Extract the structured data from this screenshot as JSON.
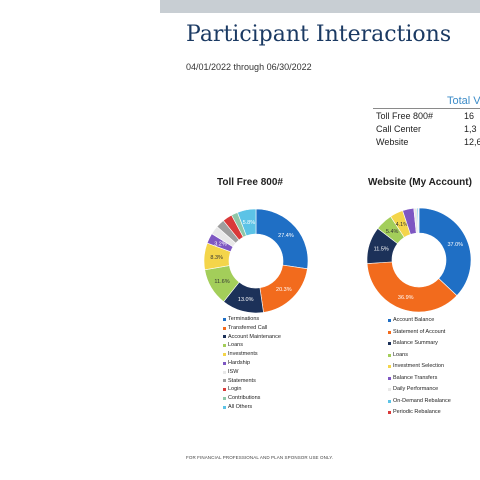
{
  "header": {
    "title": "Participant Interactions",
    "date_range": "04/01/2022 through 06/30/2022"
  },
  "total_volume": {
    "header": "Total V",
    "rows": [
      {
        "label": "Toll Free 800#",
        "value": "16"
      },
      {
        "label": "Call Center",
        "value": "1,3"
      },
      {
        "label": "Website",
        "value": "12,6"
      }
    ]
  },
  "footer": "FOR FINANCIAL PROFESSIONAL AND PLAN SPONSOR USE ONLY.",
  "chart_data": [
    {
      "type": "pie",
      "title": "Toll Free 800#",
      "labels": [
        "Terminations",
        "Transferred Call",
        "Account Maintenance",
        "Loans",
        "Investments",
        "Hardship",
        "ISW",
        "Statements",
        "Login",
        "Contributions",
        "All Others"
      ],
      "values": [
        27.4,
        20.3,
        13.0,
        11.6,
        8.3,
        3.2,
        2.7,
        2.7,
        3.0,
        2.0,
        5.8
      ],
      "data_labels": [
        "27.4%",
        "20.3%",
        "13.0%",
        "11.6%",
        "8.3%",
        "3.2%",
        "",
        "",
        "",
        "",
        "5.8%"
      ],
      "colors": [
        "#1f6fc5",
        "#f26b1d",
        "#1c3159",
        "#a3ce5a",
        "#f4d54a",
        "#7e57c2",
        "#e8e8e8",
        "#9e9e9e",
        "#d93a3a",
        "#8fc7a8",
        "#5cc3e6"
      ],
      "legend": "bottom"
    },
    {
      "type": "pie",
      "title": "Website (My Account)",
      "labels": [
        "Account Balance",
        "Statement of Account",
        "Balance Summary",
        "Loans",
        "Investment Selection",
        "Balance Transfers",
        "Daily Performance",
        "On-Demand Rebalance",
        "Periodic Rebalance"
      ],
      "values": [
        37.0,
        36.9,
        11.5,
        5.4,
        4.1,
        3.5,
        1.0,
        0.4,
        0.2
      ],
      "data_labels": [
        "37.0%",
        "36.9%",
        "11.5%",
        "5.4%",
        "4.1%",
        "",
        "",
        "",
        ""
      ],
      "colors": [
        "#1f6fc5",
        "#f26b1d",
        "#1c3159",
        "#a3ce5a",
        "#f4d54a",
        "#7e57c2",
        "#e8e8e8",
        "#5cc3e6",
        "#d93a3a"
      ],
      "legend": "bottom"
    }
  ]
}
